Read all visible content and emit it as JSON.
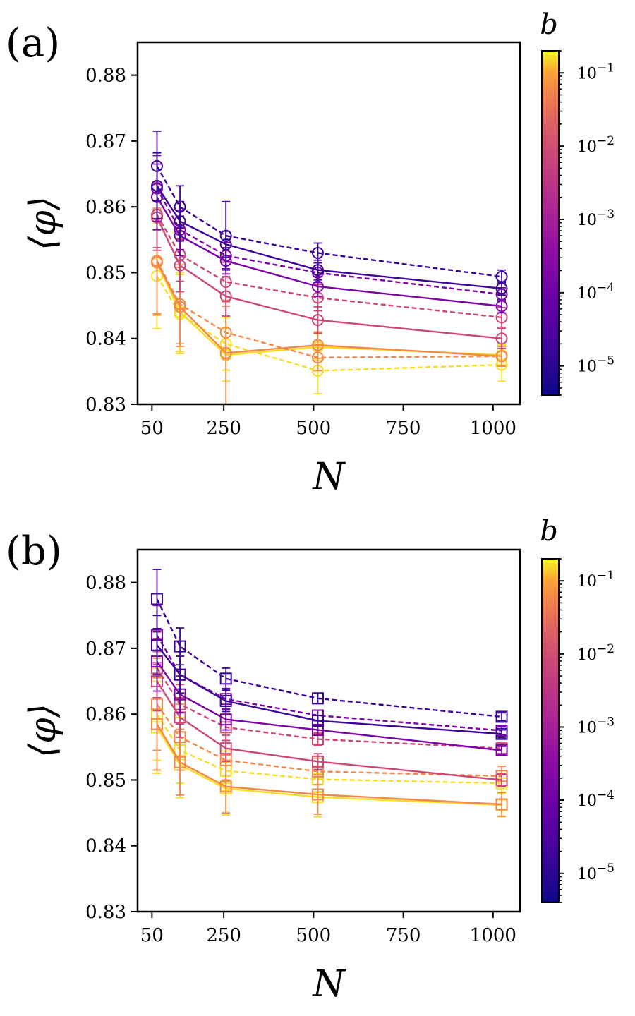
{
  "chart_data": [
    {
      "type": "line",
      "panel_label": "(a)",
      "marker": "circle",
      "xlabel": "N",
      "ylabel": "⟨φ⟩",
      "xlim": [
        10,
        1075
      ],
      "ylim": [
        0.83,
        0.885
      ],
      "xticks": [
        50,
        250,
        500,
        750,
        1000
      ],
      "xtick_labels": [
        "50",
        "250",
        "500",
        "750",
        "1000"
      ],
      "yticks": [
        0.83,
        0.84,
        0.85,
        0.86,
        0.87,
        0.88
      ],
      "ytick_labels": [
        "0.83",
        "0.84",
        "0.85",
        "0.86",
        "0.87",
        "0.88"
      ],
      "x": [
        64,
        128,
        256,
        512,
        1024
      ],
      "series": [
        {
          "b": 1e-05,
          "style": "dashed",
          "values": [
            0.8662,
            0.86,
            0.8556,
            0.853,
            0.8494
          ],
          "err": [
            0.0053,
            0.0032,
            0.0052,
            0.0015,
            0.001
          ]
        },
        {
          "b": 1e-05,
          "style": "solid",
          "values": [
            0.8632,
            0.8578,
            0.8543,
            0.8504,
            0.8476
          ],
          "err": [
            0.005,
            0.003,
            0.002,
            0.0015,
            0.001
          ]
        },
        {
          "b": 0.0001,
          "style": "dashed",
          "values": [
            0.8628,
            0.8565,
            0.8526,
            0.85,
            0.8467
          ],
          "err": [
            0.005,
            0.003,
            0.002,
            0.0015,
            0.001
          ]
        },
        {
          "b": 0.0001,
          "style": "solid",
          "values": [
            0.8615,
            0.8556,
            0.8518,
            0.8479,
            0.8449
          ],
          "err": [
            0.005,
            0.003,
            0.002,
            0.0015,
            0.001
          ]
        },
        {
          "b": 0.001,
          "style": "dashed",
          "values": [
            0.8588,
            0.8527,
            0.8486,
            0.8462,
            0.8432
          ],
          "err": [
            0.005,
            0.004,
            0.003,
            0.002,
            0.0015
          ]
        },
        {
          "b": 0.001,
          "style": "solid",
          "values": [
            0.8584,
            0.8511,
            0.8464,
            0.8428,
            0.84
          ],
          "err": [
            0.005,
            0.004,
            0.003,
            0.002,
            0.0015
          ]
        },
        {
          "b": 0.01,
          "style": "dashed",
          "values": [
            0.8518,
            0.8452,
            0.8409,
            0.8371,
            0.8373
          ],
          "err": [
            0.008,
            0.006,
            0.004,
            0.002,
            0.0015
          ]
        },
        {
          "b": 0.01,
          "style": "solid",
          "values": [
            0.8516,
            0.8448,
            0.8378,
            0.839,
            0.8373
          ],
          "err": [
            0.008,
            0.006,
            0.008,
            0.002,
            0.0015
          ]
        },
        {
          "b": 0.1,
          "style": "dashed",
          "values": [
            0.8495,
            0.8437,
            0.8392,
            0.8351,
            0.836
          ],
          "err": [
            0.008,
            0.006,
            0.004,
            0.0035,
            0.0025
          ]
        },
        {
          "b": 0.1,
          "style": "solid",
          "values": [
            0.8515,
            0.844,
            0.8375,
            0.8387,
            0.8375
          ],
          "err": [
            0.008,
            0.006,
            0.004,
            0.002,
            0.0015
          ]
        }
      ]
    },
    {
      "type": "line",
      "panel_label": "(b)",
      "marker": "square",
      "xlabel": "N",
      "ylabel": "⟨φ⟩",
      "xlim": [
        10,
        1075
      ],
      "ylim": [
        0.83,
        0.885
      ],
      "xticks": [
        50,
        250,
        500,
        750,
        1000
      ],
      "xtick_labels": [
        "50",
        "250",
        "500",
        "750",
        "1000"
      ],
      "yticks": [
        0.83,
        0.84,
        0.85,
        0.86,
        0.87,
        0.88
      ],
      "ytick_labels": [
        "0.83",
        "0.84",
        "0.85",
        "0.86",
        "0.87",
        "0.88"
      ],
      "x": [
        64,
        128,
        256,
        512,
        1024
      ],
      "series": [
        {
          "b": 1e-05,
          "style": "dashed",
          "values": [
            0.8775,
            0.8703,
            0.8654,
            0.8624,
            0.8596
          ],
          "err": [
            0.0045,
            0.0028,
            0.0016,
            0.0008,
            0.0006
          ]
        },
        {
          "b": 1e-05,
          "style": "solid",
          "values": [
            0.8705,
            0.866,
            0.862,
            0.859,
            0.857
          ],
          "err": [
            0.0045,
            0.0028,
            0.0016,
            0.0008,
            0.0006
          ]
        },
        {
          "b": 0.0001,
          "style": "dashed",
          "values": [
            0.872,
            0.866,
            0.8623,
            0.8598,
            0.8575
          ],
          "err": [
            0.0045,
            0.0028,
            0.0016,
            0.0008,
            0.0006
          ]
        },
        {
          "b": 0.0001,
          "style": "solid",
          "values": [
            0.868,
            0.863,
            0.8592,
            0.8576,
            0.8545
          ],
          "err": [
            0.0045,
            0.0028,
            0.0016,
            0.0008,
            0.0006
          ]
        },
        {
          "b": 0.001,
          "style": "dashed",
          "values": [
            0.867,
            0.8615,
            0.858,
            0.8562,
            0.8548
          ],
          "err": [
            0.0045,
            0.003,
            0.002,
            0.001,
            0.0008
          ]
        },
        {
          "b": 0.001,
          "style": "solid",
          "values": [
            0.865,
            0.8595,
            0.8548,
            0.8528,
            0.85
          ],
          "err": [
            0.0045,
            0.003,
            0.002,
            0.0012,
            0.001
          ]
        },
        {
          "b": 0.01,
          "style": "dashed",
          "values": [
            0.8615,
            0.8565,
            0.853,
            0.8513,
            0.8506
          ],
          "err": [
            0.007,
            0.005,
            0.003,
            0.002,
            0.0015
          ]
        },
        {
          "b": 0.01,
          "style": "solid",
          "values": [
            0.8585,
            0.8527,
            0.849,
            0.8478,
            0.8463
          ],
          "err": [
            0.007,
            0.005,
            0.004,
            0.003,
            0.0018
          ]
        },
        {
          "b": 0.1,
          "style": "dashed",
          "values": [
            0.86,
            0.8545,
            0.8514,
            0.8501,
            0.8495
          ],
          "err": [
            0.007,
            0.005,
            0.003,
            0.002,
            0.0015
          ]
        },
        {
          "b": 0.1,
          "style": "solid",
          "values": [
            0.858,
            0.8523,
            0.8487,
            0.8474,
            0.8462
          ],
          "err": [
            0.007,
            0.005,
            0.004,
            0.003,
            0.0018
          ]
        }
      ]
    }
  ],
  "colorbar": {
    "title": "b",
    "scale": "log",
    "range": [
      4e-06,
      0.2
    ],
    "colormap": "plasma",
    "labels": [
      {
        "value": 1e-05,
        "base": "10",
        "exp": "−5"
      },
      {
        "value": 0.0001,
        "base": "10",
        "exp": "−4"
      },
      {
        "value": 0.001,
        "base": "10",
        "exp": "−3"
      },
      {
        "value": 0.01,
        "base": "10",
        "exp": "−2"
      },
      {
        "value": 0.1,
        "base": "10",
        "exp": "−1"
      }
    ]
  },
  "colors": {
    "1e-5": "#3d049b",
    "1e-4": "#7d03a8",
    "1e-3": "#cc4778",
    "1e-2": "#f48849",
    "1e-1": "#f9dd25"
  }
}
